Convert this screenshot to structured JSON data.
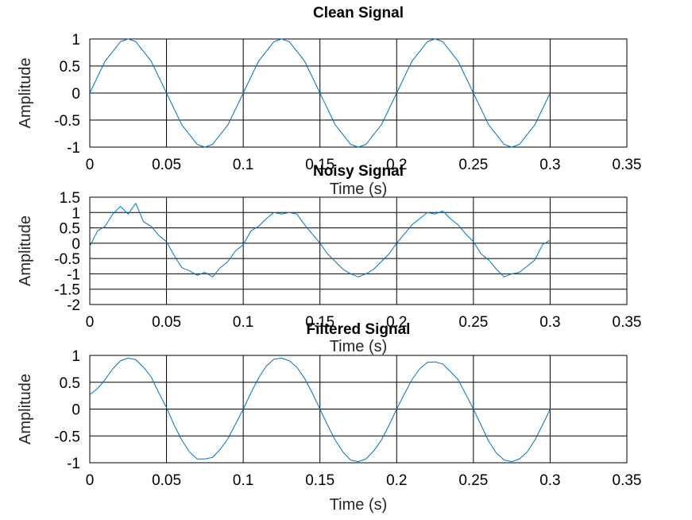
{
  "chart_data": [
    {
      "type": "line",
      "title": "Clean Signal",
      "xlabel": "Time (s)",
      "ylabel": "Amplitude",
      "xlim": [
        0,
        0.35
      ],
      "ylim": [
        -1,
        1
      ],
      "xticks": [
        0,
        0.05,
        0.1,
        0.15,
        0.2,
        0.25,
        0.3,
        0.35
      ],
      "xtick_labels": [
        "0",
        "0.05",
        "0.1",
        "0.15",
        "0.2",
        "0.25",
        "0.3",
        "0.35"
      ],
      "yticks": [
        1,
        0.5,
        0,
        -0.5,
        -1
      ],
      "ytick_labels": [
        "1",
        "0.5",
        "0",
        "-0.5",
        "-1"
      ],
      "grid": true,
      "color": "#0072bd",
      "series": [
        {
          "x": [
            0,
            0.01,
            0.02,
            0.025,
            0.03,
            0.04,
            0.05,
            0.06,
            0.07,
            0.075,
            0.08,
            0.09,
            0.1,
            0.11,
            0.12,
            0.125,
            0.13,
            0.14,
            0.15,
            0.16,
            0.17,
            0.175,
            0.18,
            0.19,
            0.2,
            0.21,
            0.22,
            0.225,
            0.23,
            0.24,
            0.25,
            0.26,
            0.27,
            0.275,
            0.28,
            0.29,
            0.3
          ],
          "values": [
            0,
            0.59,
            0.95,
            1,
            0.95,
            0.59,
            0,
            -0.59,
            -0.95,
            -1,
            -0.95,
            -0.59,
            0,
            0.59,
            0.95,
            1,
            0.95,
            0.59,
            0,
            -0.59,
            -0.95,
            -1,
            -0.95,
            -0.59,
            0,
            0.59,
            0.95,
            1,
            0.95,
            0.59,
            0,
            -0.59,
            -0.95,
            -1,
            -0.95,
            -0.59,
            0
          ]
        }
      ]
    },
    {
      "type": "line",
      "title": "Noisy Signal",
      "xlabel": "Time (s)",
      "ylabel": "Amplitude",
      "xlim": [
        0,
        0.35
      ],
      "ylim": [
        -2,
        1.5
      ],
      "xticks": [
        0,
        0.05,
        0.1,
        0.15,
        0.2,
        0.25,
        0.3,
        0.35
      ],
      "xtick_labels": [
        "0",
        "0.05",
        "0.1",
        "0.15",
        "0.2",
        "0.25",
        "0.3",
        "0.35"
      ],
      "yticks": [
        1.5,
        1,
        0.5,
        0,
        -0.5,
        -1,
        -1.5,
        -2
      ],
      "ytick_labels": [
        "1.5",
        "1",
        "0.5",
        "0",
        "-0.5",
        "-1",
        "-1.5",
        "-2"
      ],
      "grid": true,
      "color": "#0072bd",
      "series": [
        {
          "x": [
            0,
            0.005,
            0.01,
            0.015,
            0.02,
            0.025,
            0.03,
            0.035,
            0.04,
            0.045,
            0.05,
            0.055,
            0.06,
            0.065,
            0.07,
            0.075,
            0.08,
            0.085,
            0.09,
            0.095,
            0.1,
            0.105,
            0.11,
            0.115,
            0.12,
            0.125,
            0.13,
            0.135,
            0.14,
            0.145,
            0.15,
            0.155,
            0.16,
            0.165,
            0.17,
            0.175,
            0.18,
            0.185,
            0.19,
            0.195,
            0.2,
            0.205,
            0.21,
            0.215,
            0.22,
            0.225,
            0.23,
            0.235,
            0.24,
            0.245,
            0.25,
            0.255,
            0.26,
            0.265,
            0.27,
            0.275,
            0.28,
            0.285,
            0.29,
            0.295,
            0.3
          ],
          "values": [
            -0.1,
            0.4,
            0.55,
            0.95,
            1.2,
            0.95,
            1.3,
            0.7,
            0.55,
            0.25,
            0.05,
            -0.4,
            -0.8,
            -0.9,
            -1.05,
            -0.95,
            -1.1,
            -0.8,
            -0.6,
            -0.25,
            -0.05,
            0.4,
            0.55,
            0.8,
            1.0,
            0.95,
            1.0,
            0.95,
            0.6,
            0.3,
            0.0,
            -0.35,
            -0.6,
            -0.85,
            -1.0,
            -1.1,
            -1.0,
            -0.85,
            -0.6,
            -0.35,
            0.0,
            0.3,
            0.6,
            0.8,
            1.0,
            0.95,
            1.05,
            0.8,
            0.6,
            0.3,
            0.05,
            -0.35,
            -0.55,
            -0.85,
            -1.1,
            -1.0,
            -0.95,
            -0.75,
            -0.55,
            -0.05,
            0.1
          ]
        }
      ]
    },
    {
      "type": "line",
      "title": "Filtered Signal",
      "xlabel": "Time (s)",
      "ylabel": "Amplitude",
      "xlim": [
        0,
        0.35
      ],
      "ylim": [
        -1,
        1
      ],
      "xticks": [
        0,
        0.05,
        0.1,
        0.15,
        0.2,
        0.25,
        0.3,
        0.35
      ],
      "xtick_labels": [
        "0",
        "0.05",
        "0.1",
        "0.15",
        "0.2",
        "0.25",
        "0.3",
        "0.35"
      ],
      "yticks": [
        1,
        0.5,
        0,
        -0.5,
        -1
      ],
      "ytick_labels": [
        "1",
        "0.5",
        "0",
        "-0.5",
        "-1"
      ],
      "grid": true,
      "color": "#0072bd",
      "series": [
        {
          "x": [
            0,
            0.005,
            0.01,
            0.015,
            0.02,
            0.025,
            0.03,
            0.035,
            0.04,
            0.045,
            0.05,
            0.055,
            0.06,
            0.065,
            0.07,
            0.075,
            0.08,
            0.085,
            0.09,
            0.095,
            0.1,
            0.105,
            0.11,
            0.115,
            0.12,
            0.125,
            0.13,
            0.135,
            0.14,
            0.145,
            0.15,
            0.155,
            0.16,
            0.165,
            0.17,
            0.175,
            0.18,
            0.185,
            0.19,
            0.195,
            0.2,
            0.205,
            0.21,
            0.215,
            0.22,
            0.225,
            0.23,
            0.235,
            0.24,
            0.245,
            0.25,
            0.255,
            0.26,
            0.265,
            0.27,
            0.275,
            0.28,
            0.285,
            0.29,
            0.295,
            0.3
          ],
          "values": [
            0.27,
            0.38,
            0.55,
            0.75,
            0.9,
            0.95,
            0.92,
            0.78,
            0.6,
            0.3,
            0.03,
            -0.3,
            -0.58,
            -0.8,
            -0.93,
            -0.93,
            -0.9,
            -0.75,
            -0.55,
            -0.28,
            0.0,
            0.3,
            0.58,
            0.8,
            0.93,
            0.95,
            0.9,
            0.78,
            0.57,
            0.3,
            0.0,
            -0.3,
            -0.58,
            -0.8,
            -0.95,
            -0.98,
            -0.93,
            -0.78,
            -0.58,
            -0.3,
            0.0,
            0.28,
            0.55,
            0.75,
            0.87,
            0.88,
            0.84,
            0.7,
            0.55,
            0.28,
            0.0,
            -0.3,
            -0.6,
            -0.82,
            -0.95,
            -0.98,
            -0.93,
            -0.8,
            -0.58,
            -0.3,
            0.0
          ]
        }
      ]
    }
  ]
}
